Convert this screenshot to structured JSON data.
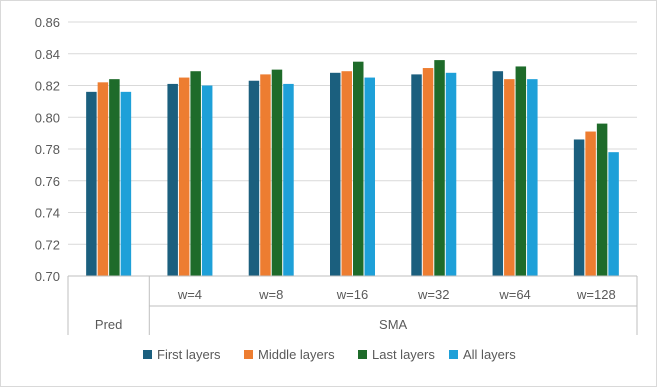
{
  "chart_data": {
    "type": "bar",
    "groups": [
      {
        "label": "Pred",
        "categories": [
          ""
        ]
      },
      {
        "label": "SMA",
        "categories": [
          "w=4",
          "w=8",
          "w=16",
          "w=32",
          "w=64",
          "w=128"
        ]
      }
    ],
    "categories": [
      "",
      "w=4",
      "w=8",
      "w=16",
      "w=32",
      "w=64",
      "w=128"
    ],
    "series": [
      {
        "name": "First layers",
        "color": "#1b5f7e",
        "values": [
          0.816,
          0.821,
          0.823,
          0.828,
          0.827,
          0.829,
          0.786
        ]
      },
      {
        "name": "Middle layers",
        "color": "#ed7d31",
        "values": [
          0.822,
          0.825,
          0.827,
          0.829,
          0.831,
          0.824,
          0.791
        ]
      },
      {
        "name": "Last layers",
        "color": "#1e6b2a",
        "values": [
          0.824,
          0.829,
          0.83,
          0.835,
          0.836,
          0.832,
          0.796
        ]
      },
      {
        "name": "All layers",
        "color": "#1ea0d8",
        "values": [
          0.816,
          0.82,
          0.821,
          0.825,
          0.828,
          0.824,
          0.778
        ]
      }
    ],
    "ylim": [
      0.7,
      0.86
    ],
    "yticks": [
      "0.70",
      "0.72",
      "0.74",
      "0.76",
      "0.78",
      "0.80",
      "0.82",
      "0.84",
      "0.86"
    ],
    "grid": true,
    "legend_position": "bottom"
  }
}
